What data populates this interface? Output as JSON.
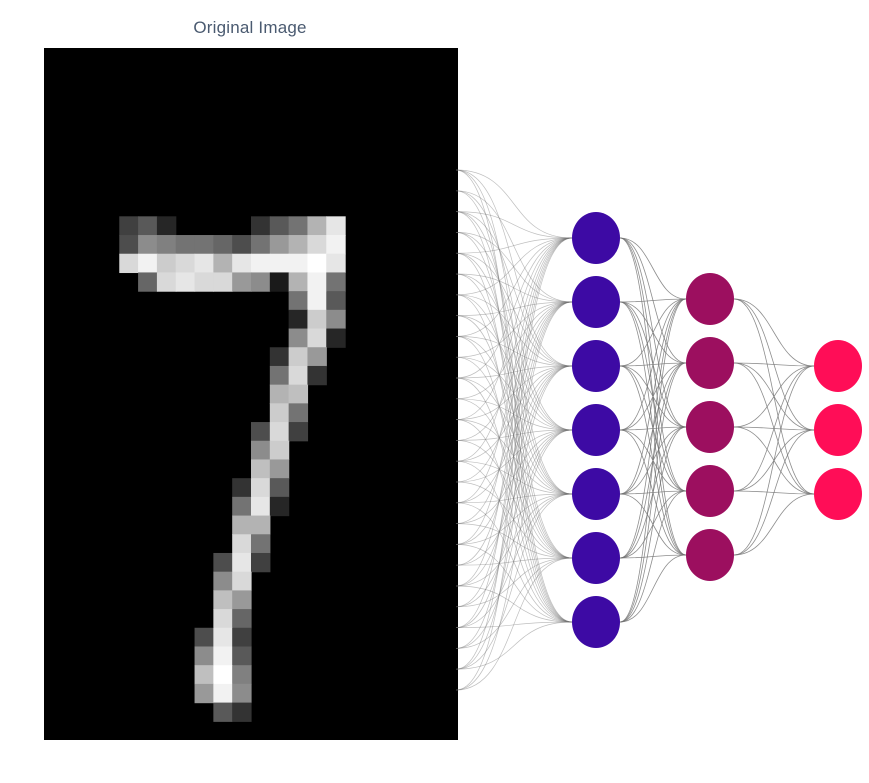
{
  "title": "Original Image",
  "image": {
    "description_label": "",
    "columns": 22,
    "rows": 37,
    "pixel_rows": [
      {
        "row": 9,
        "cells": [
          [
            4,
            0.25
          ],
          [
            5,
            0.35
          ],
          [
            6,
            0.15
          ],
          [
            11,
            0.2
          ],
          [
            12,
            0.35
          ],
          [
            13,
            0.45
          ],
          [
            14,
            0.7
          ],
          [
            15,
            0.9
          ]
        ]
      },
      {
        "row": 10,
        "cells": [
          [
            4,
            0.3
          ],
          [
            5,
            0.55
          ],
          [
            6,
            0.5
          ],
          [
            7,
            0.45
          ],
          [
            8,
            0.45
          ],
          [
            9,
            0.4
          ],
          [
            10,
            0.3
          ],
          [
            11,
            0.45
          ],
          [
            12,
            0.6
          ],
          [
            13,
            0.7
          ],
          [
            14,
            0.85
          ],
          [
            15,
            0.95
          ]
        ]
      },
      {
        "row": 11,
        "cells": [
          [
            4,
            0.85
          ],
          [
            5,
            0.95
          ],
          [
            6,
            0.8
          ],
          [
            7,
            0.85
          ],
          [
            8,
            0.9
          ],
          [
            9,
            0.7
          ],
          [
            10,
            0.9
          ],
          [
            11,
            0.95
          ],
          [
            12,
            0.95
          ],
          [
            13,
            0.95
          ],
          [
            14,
            1.0
          ],
          [
            15,
            0.9
          ]
        ]
      },
      {
        "row": 12,
        "cells": [
          [
            5,
            0.4
          ],
          [
            6,
            0.85
          ],
          [
            7,
            0.9
          ],
          [
            8,
            0.85
          ],
          [
            9,
            0.85
          ],
          [
            10,
            0.6
          ],
          [
            11,
            0.55
          ],
          [
            12,
            0.1
          ],
          [
            13,
            0.7
          ],
          [
            14,
            0.95
          ],
          [
            15,
            0.45
          ]
        ]
      },
      {
        "row": 13,
        "cells": [
          [
            13,
            0.45
          ],
          [
            14,
            0.95
          ],
          [
            15,
            0.35
          ]
        ]
      },
      {
        "row": 14,
        "cells": [
          [
            13,
            0.15
          ],
          [
            14,
            0.8
          ],
          [
            15,
            0.55
          ]
        ]
      },
      {
        "row": 15,
        "cells": [
          [
            13,
            0.55
          ],
          [
            14,
            0.85
          ],
          [
            15,
            0.15
          ]
        ]
      },
      {
        "row": 16,
        "cells": [
          [
            12,
            0.2
          ],
          [
            13,
            0.8
          ],
          [
            14,
            0.6
          ]
        ]
      },
      {
        "row": 17,
        "cells": [
          [
            12,
            0.45
          ],
          [
            13,
            0.85
          ],
          [
            14,
            0.2
          ]
        ]
      },
      {
        "row": 18,
        "cells": [
          [
            12,
            0.7
          ],
          [
            13,
            0.75
          ]
        ]
      },
      {
        "row": 19,
        "cells": [
          [
            12,
            0.8
          ],
          [
            13,
            0.45
          ]
        ]
      },
      {
        "row": 20,
        "cells": [
          [
            11,
            0.3
          ],
          [
            12,
            0.85
          ],
          [
            13,
            0.25
          ]
        ]
      },
      {
        "row": 21,
        "cells": [
          [
            11,
            0.55
          ],
          [
            12,
            0.8
          ]
        ]
      },
      {
        "row": 22,
        "cells": [
          [
            11,
            0.75
          ],
          [
            12,
            0.6
          ]
        ]
      },
      {
        "row": 23,
        "cells": [
          [
            10,
            0.2
          ],
          [
            11,
            0.85
          ],
          [
            12,
            0.35
          ]
        ]
      },
      {
        "row": 24,
        "cells": [
          [
            10,
            0.45
          ],
          [
            11,
            0.9
          ],
          [
            12,
            0.15
          ]
        ]
      },
      {
        "row": 25,
        "cells": [
          [
            10,
            0.7
          ],
          [
            11,
            0.7
          ]
        ]
      },
      {
        "row": 26,
        "cells": [
          [
            10,
            0.85
          ],
          [
            11,
            0.45
          ]
        ]
      },
      {
        "row": 27,
        "cells": [
          [
            9,
            0.3
          ],
          [
            10,
            0.9
          ],
          [
            11,
            0.25
          ]
        ]
      },
      {
        "row": 28,
        "cells": [
          [
            9,
            0.55
          ],
          [
            10,
            0.85
          ]
        ]
      },
      {
        "row": 29,
        "cells": [
          [
            9,
            0.75
          ],
          [
            10,
            0.6
          ]
        ]
      },
      {
        "row": 30,
        "cells": [
          [
            9,
            0.85
          ],
          [
            10,
            0.4
          ]
        ]
      },
      {
        "row": 31,
        "cells": [
          [
            8,
            0.3
          ],
          [
            9,
            0.9
          ],
          [
            10,
            0.25
          ]
        ]
      },
      {
        "row": 32,
        "cells": [
          [
            8,
            0.55
          ],
          [
            9,
            0.95
          ],
          [
            10,
            0.35
          ]
        ]
      },
      {
        "row": 33,
        "cells": [
          [
            8,
            0.75
          ],
          [
            9,
            1.0
          ],
          [
            10,
            0.5
          ]
        ]
      },
      {
        "row": 34,
        "cells": [
          [
            8,
            0.6
          ],
          [
            9,
            0.95
          ],
          [
            10,
            0.55
          ]
        ]
      },
      {
        "row": 35,
        "cells": [
          [
            9,
            0.35
          ],
          [
            10,
            0.2
          ]
        ]
      }
    ]
  },
  "network": {
    "layers": [
      {
        "name": "",
        "neurons": 7,
        "color": "#3d0aa4"
      },
      {
        "name": "",
        "neurons": 5,
        "color": "#9c0f5f"
      },
      {
        "name": "",
        "neurons": 3,
        "color": "#ff0d57"
      }
    ],
    "edge_color": "#707070"
  }
}
